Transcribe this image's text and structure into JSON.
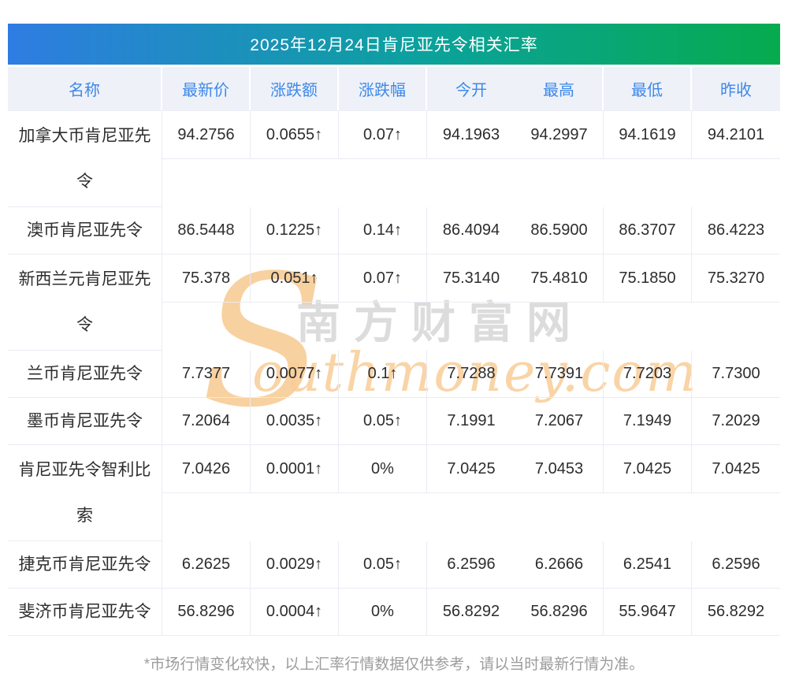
{
  "page": {
    "title": "2025年12月24日肯尼亚先令相关汇率",
    "footnote": "*市场行情变化较快，以上汇率行情数据仅供参考，请以当时最新行情为准。"
  },
  "colors": {
    "title_gradient_left": "#2f7ce2",
    "title_gradient_mid": "#0ba29b",
    "title_gradient_right": "#06ab4e",
    "header_text_blue": "#3d88e9",
    "header_bg": "#eef1f8",
    "up_red": "#fb1e1e",
    "value_dark": "#2d2d2d",
    "divider": "#e9ecf3",
    "footnote_gray": "#9c9c9c",
    "watermark_orange": "#f8cd97",
    "watermark_gray": "#d9d9d9"
  },
  "table": {
    "columns": [
      "名称",
      "最新价",
      "涨跌额",
      "涨跌幅",
      "今开",
      "最高",
      "最低",
      "昨收"
    ],
    "rows": [
      {
        "name": "加拿大币肯尼亚先\n令",
        "latest": "94.2756",
        "change": "0.0655↑",
        "pct": "0.07↑",
        "open": "94.1963",
        "high": "94.2997",
        "low": "94.1619",
        "prev_close": "94.2101"
      },
      {
        "name": "澳币肯尼亚先令",
        "latest": "86.5448",
        "change": "0.1225↑",
        "pct": "0.14↑",
        "open": "86.4094",
        "high": "86.5900",
        "low": "86.3707",
        "prev_close": "86.4223"
      },
      {
        "name": "新西兰元肯尼亚先\n令",
        "latest": "75.378",
        "change": "0.051↑",
        "pct": "0.07↑",
        "open": "75.3140",
        "high": "75.4810",
        "low": "75.1850",
        "prev_close": "75.3270"
      },
      {
        "name": "兰币肯尼亚先令",
        "latest": "7.7377",
        "change": "0.0077↑",
        "pct": "0.1↑",
        "open": "7.7288",
        "high": "7.7391",
        "low": "7.7203",
        "prev_close": "7.7300"
      },
      {
        "name": "墨币肯尼亚先令",
        "latest": "7.2064",
        "change": "0.0035↑",
        "pct": "0.05↑",
        "open": "7.1991",
        "high": "7.2067",
        "low": "7.1949",
        "prev_close": "7.2029"
      },
      {
        "name": "肯尼亚先令智利比\n索",
        "latest": "7.0426",
        "change": "0.0001↑",
        "pct": "0%",
        "open": "7.0425",
        "high": "7.0453",
        "low": "7.0425",
        "prev_close": "7.0425"
      },
      {
        "name": "捷克币肯尼亚先令",
        "latest": "6.2625",
        "change": "0.0029↑",
        "pct": "0.05↑",
        "open": "6.2596",
        "high": "6.2666",
        "low": "6.2541",
        "prev_close": "6.2596"
      },
      {
        "name": "斐济币肯尼亚先令",
        "latest": "56.8296",
        "change": "0.0004↑",
        "pct": "0%",
        "open": "56.8292",
        "high": "56.8296",
        "low": "55.9647",
        "prev_close": "56.8292"
      }
    ]
  },
  "watermark": {
    "big_s": "S",
    "cn_text": "南方财富网",
    "en_text": "outhmoney.com"
  }
}
